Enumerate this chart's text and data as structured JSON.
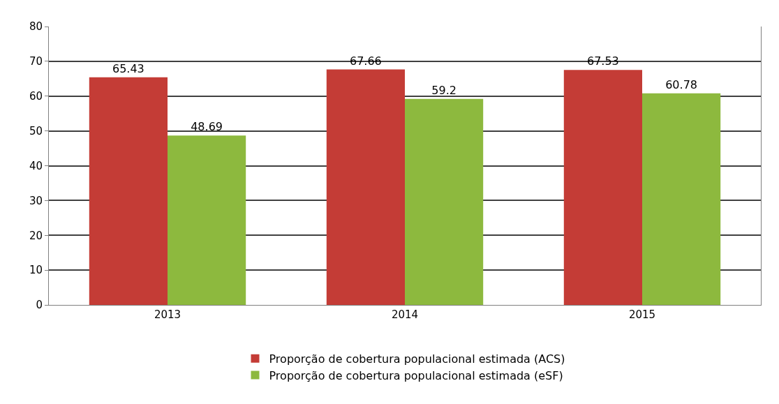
{
  "chart_data": {
    "type": "bar",
    "categories": [
      "2013",
      "2014",
      "2015"
    ],
    "series": [
      {
        "name": "Proporção de cobertura populacional estimada (ACS)",
        "color": "#c43c36",
        "values": [
          65.43,
          67.66,
          67.53
        ]
      },
      {
        "name": "Proporção de cobertura populacional estimada (eSF)",
        "color": "#8db93e",
        "values": [
          48.69,
          59.2,
          60.78
        ]
      }
    ],
    "ylim": [
      0,
      80
    ],
    "yticks": [
      0,
      10,
      20,
      30,
      40,
      50,
      60,
      70,
      80
    ],
    "grid": "y",
    "legend": "bottom",
    "data_labels": true
  }
}
